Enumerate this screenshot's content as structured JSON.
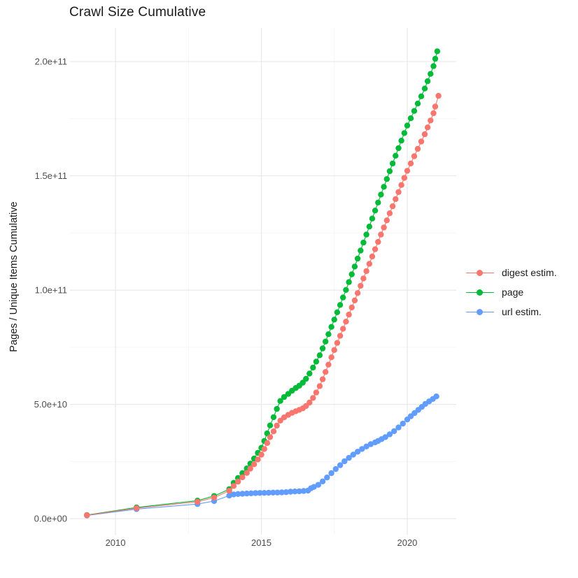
{
  "title": "Crawl Size Cumulative",
  "colors": {
    "background": "#ffffff",
    "grid_major": "#e8e8e8",
    "grid_minor": "#f3f3f3",
    "tick_label_text": "#4d4d4d",
    "title_text": "#1a1a1a",
    "digest_estim": "#F8766D",
    "page": "#00BA38",
    "url_estim": "#619CFF"
  },
  "chart_data": {
    "type": "scatter",
    "style": "points-with-line",
    "title": "Crawl Size Cumulative",
    "xlabel": "",
    "ylabel": "Pages / Unique Items Cumulative",
    "values_unit": "pages (y values in units of 1e9 pages)",
    "xlim": [
      2008.44,
      2021.68
    ],
    "ylim": [
      -7,
      214.7
    ],
    "grid": "major+minor",
    "legend_position": "right",
    "x_ticks": {
      "values": [
        2010,
        2015,
        2020
      ],
      "labels": [
        "2010",
        "2015",
        "2020"
      ]
    },
    "x_minor": [
      2012.5,
      2017.5
    ],
    "y_ticks": {
      "values": [
        0,
        50,
        100,
        150,
        200
      ],
      "labels": [
        "0.0e+00",
        "5.0e+10",
        "1.0e+11",
        "1.5e+11",
        "2.0e+11"
      ]
    },
    "y_minor": [
      25,
      75,
      125,
      175
    ],
    "series": [
      {
        "name": "digest estim.",
        "color": "#F8766D",
        "points": [
          [
            2009.02,
            1.5
          ],
          [
            2010.72,
            4.6
          ],
          [
            2012.81,
            7.4
          ],
          [
            2013.38,
            9.2
          ],
          [
            2013.9,
            12.2
          ],
          [
            2014.05,
            14.3
          ],
          [
            2014.2,
            16.2
          ],
          [
            2014.35,
            18.1
          ],
          [
            2014.5,
            20.0
          ],
          [
            2014.62,
            21.9
          ],
          [
            2014.75,
            23.8
          ],
          [
            2014.88,
            25.9
          ],
          [
            2015.0,
            28.0
          ],
          [
            2015.1,
            30.5
          ],
          [
            2015.2,
            33.1
          ],
          [
            2015.3,
            35.7
          ],
          [
            2015.42,
            38.2
          ],
          [
            2015.53,
            40.7
          ],
          [
            2015.65,
            42.9
          ],
          [
            2015.78,
            44.3
          ],
          [
            2015.92,
            45.4
          ],
          [
            2016.05,
            46.3
          ],
          [
            2016.18,
            47.0
          ],
          [
            2016.3,
            47.6
          ],
          [
            2016.42,
            48.3
          ],
          [
            2016.53,
            49.3
          ],
          [
            2016.65,
            50.8
          ],
          [
            2016.77,
            52.8
          ],
          [
            2016.88,
            55.2
          ],
          [
            2017.0,
            58.0
          ],
          [
            2017.1,
            61.0
          ],
          [
            2017.2,
            64.2
          ],
          [
            2017.3,
            67.4
          ],
          [
            2017.4,
            70.6
          ],
          [
            2017.5,
            73.8
          ],
          [
            2017.6,
            76.9
          ],
          [
            2017.7,
            80.0
          ],
          [
            2017.8,
            83.1
          ],
          [
            2017.9,
            86.2
          ],
          [
            2018.0,
            89.3
          ],
          [
            2018.1,
            92.4
          ],
          [
            2018.2,
            95.5
          ],
          [
            2018.3,
            98.7
          ],
          [
            2018.4,
            101.9
          ],
          [
            2018.5,
            105.1
          ],
          [
            2018.6,
            108.3
          ],
          [
            2018.7,
            111.5
          ],
          [
            2018.8,
            114.7
          ],
          [
            2018.9,
            117.9
          ],
          [
            2019.0,
            121.1
          ],
          [
            2019.1,
            124.3
          ],
          [
            2019.2,
            127.4
          ],
          [
            2019.3,
            130.5
          ],
          [
            2019.4,
            133.6
          ],
          [
            2019.5,
            136.7
          ],
          [
            2019.6,
            139.8
          ],
          [
            2019.7,
            142.9
          ],
          [
            2019.8,
            146.0
          ],
          [
            2019.9,
            149.1
          ],
          [
            2020.0,
            152.2
          ],
          [
            2020.12,
            155.4
          ],
          [
            2020.24,
            158.6
          ],
          [
            2020.36,
            161.8
          ],
          [
            2020.48,
            165.0
          ],
          [
            2020.6,
            168.2
          ],
          [
            2020.7,
            171.2
          ],
          [
            2020.8,
            174.2
          ],
          [
            2020.9,
            177.4
          ],
          [
            2020.96,
            180.3
          ],
          [
            2021.07,
            185.0
          ]
        ]
      },
      {
        "name": "page",
        "color": "#00BA38",
        "points": [
          [
            2009.02,
            1.6
          ],
          [
            2010.72,
            4.9
          ],
          [
            2012.81,
            7.9
          ],
          [
            2013.38,
            9.9
          ],
          [
            2013.9,
            12.9
          ],
          [
            2014.05,
            15.7
          ],
          [
            2014.2,
            17.8
          ],
          [
            2014.35,
            19.9
          ],
          [
            2014.5,
            22.0
          ],
          [
            2014.62,
            24.1
          ],
          [
            2014.75,
            26.3
          ],
          [
            2014.88,
            28.8
          ],
          [
            2015.0,
            31.0
          ],
          [
            2015.1,
            34.0
          ],
          [
            2015.2,
            37.3
          ],
          [
            2015.3,
            40.8
          ],
          [
            2015.42,
            44.4
          ],
          [
            2015.53,
            48.0
          ],
          [
            2015.65,
            51.5
          ],
          [
            2015.78,
            53.2
          ],
          [
            2015.92,
            54.6
          ],
          [
            2016.05,
            56.0
          ],
          [
            2016.18,
            57.2
          ],
          [
            2016.3,
            58.2
          ],
          [
            2016.42,
            59.5
          ],
          [
            2016.53,
            61.2
          ],
          [
            2016.65,
            63.5
          ],
          [
            2016.77,
            66.1
          ],
          [
            2016.88,
            68.7
          ],
          [
            2017.0,
            71.5
          ],
          [
            2017.1,
            74.5
          ],
          [
            2017.2,
            77.5
          ],
          [
            2017.3,
            80.7
          ],
          [
            2017.4,
            83.9
          ],
          [
            2017.5,
            87.1
          ],
          [
            2017.6,
            90.3
          ],
          [
            2017.7,
            93.5
          ],
          [
            2017.8,
            96.8
          ],
          [
            2017.9,
            100.1
          ],
          [
            2018.0,
            103.5
          ],
          [
            2018.1,
            106.9
          ],
          [
            2018.2,
            110.3
          ],
          [
            2018.3,
            113.8
          ],
          [
            2018.4,
            117.3
          ],
          [
            2018.5,
            120.8
          ],
          [
            2018.6,
            124.3
          ],
          [
            2018.7,
            127.8
          ],
          [
            2018.8,
            131.3
          ],
          [
            2018.9,
            134.8
          ],
          [
            2019.0,
            138.3
          ],
          [
            2019.1,
            141.8
          ],
          [
            2019.2,
            145.2
          ],
          [
            2019.3,
            148.6
          ],
          [
            2019.4,
            152.0
          ],
          [
            2019.5,
            155.4
          ],
          [
            2019.6,
            158.8
          ],
          [
            2019.7,
            162.1
          ],
          [
            2019.8,
            165.4
          ],
          [
            2019.9,
            168.7
          ],
          [
            2020.0,
            172.0
          ],
          [
            2020.12,
            175.2
          ],
          [
            2020.24,
            178.4
          ],
          [
            2020.36,
            181.6
          ],
          [
            2020.48,
            184.8
          ],
          [
            2020.6,
            188.2
          ],
          [
            2020.7,
            191.4
          ],
          [
            2020.8,
            194.6
          ],
          [
            2020.9,
            198.0
          ],
          [
            2020.96,
            201.2
          ],
          [
            2021.03,
            204.5
          ]
        ]
      },
      {
        "name": "url estim.",
        "color": "#619CFF",
        "points": [
          [
            2009.02,
            1.4
          ],
          [
            2010.72,
            4.2
          ],
          [
            2012.81,
            6.4
          ],
          [
            2013.38,
            7.7
          ],
          [
            2013.9,
            10.1
          ],
          [
            2014.05,
            10.6
          ],
          [
            2014.2,
            10.8
          ],
          [
            2014.35,
            10.9
          ],
          [
            2014.5,
            11.0
          ],
          [
            2014.65,
            11.1
          ],
          [
            2014.8,
            11.2
          ],
          [
            2014.95,
            11.25
          ],
          [
            2015.1,
            11.3
          ],
          [
            2015.25,
            11.35
          ],
          [
            2015.4,
            11.4
          ],
          [
            2015.55,
            11.45
          ],
          [
            2015.7,
            11.5
          ],
          [
            2015.85,
            11.6
          ],
          [
            2016.0,
            11.8
          ],
          [
            2016.15,
            11.9
          ],
          [
            2016.3,
            12.0
          ],
          [
            2016.45,
            12.1
          ],
          [
            2016.6,
            12.3
          ],
          [
            2016.7,
            13.3
          ],
          [
            2016.8,
            13.9
          ],
          [
            2016.95,
            14.8
          ],
          [
            2017.1,
            16.3
          ],
          [
            2017.25,
            18.0
          ],
          [
            2017.4,
            19.9
          ],
          [
            2017.55,
            21.7
          ],
          [
            2017.7,
            23.4
          ],
          [
            2017.85,
            25.1
          ],
          [
            2018.0,
            26.6
          ],
          [
            2018.15,
            28.0
          ],
          [
            2018.3,
            29.3
          ],
          [
            2018.45,
            30.5
          ],
          [
            2018.6,
            31.6
          ],
          [
            2018.75,
            32.6
          ],
          [
            2018.9,
            33.4
          ],
          [
            2019.0,
            34.0
          ],
          [
            2019.12,
            34.8
          ],
          [
            2019.25,
            35.7
          ],
          [
            2019.4,
            36.9
          ],
          [
            2019.55,
            38.3
          ],
          [
            2019.7,
            39.9
          ],
          [
            2019.85,
            41.6
          ],
          [
            2020.0,
            43.4
          ],
          [
            2020.12,
            44.8
          ],
          [
            2020.25,
            46.2
          ],
          [
            2020.38,
            47.6
          ],
          [
            2020.5,
            48.9
          ],
          [
            2020.62,
            50.2
          ],
          [
            2020.75,
            51.3
          ],
          [
            2020.88,
            52.4
          ],
          [
            2021.0,
            53.5
          ]
        ]
      }
    ]
  },
  "legend": {
    "items": [
      {
        "label": "digest estim.",
        "color": "#F8766D"
      },
      {
        "label": "page",
        "color": "#00BA38"
      },
      {
        "label": "url estim.",
        "color": "#619CFF"
      }
    ]
  }
}
